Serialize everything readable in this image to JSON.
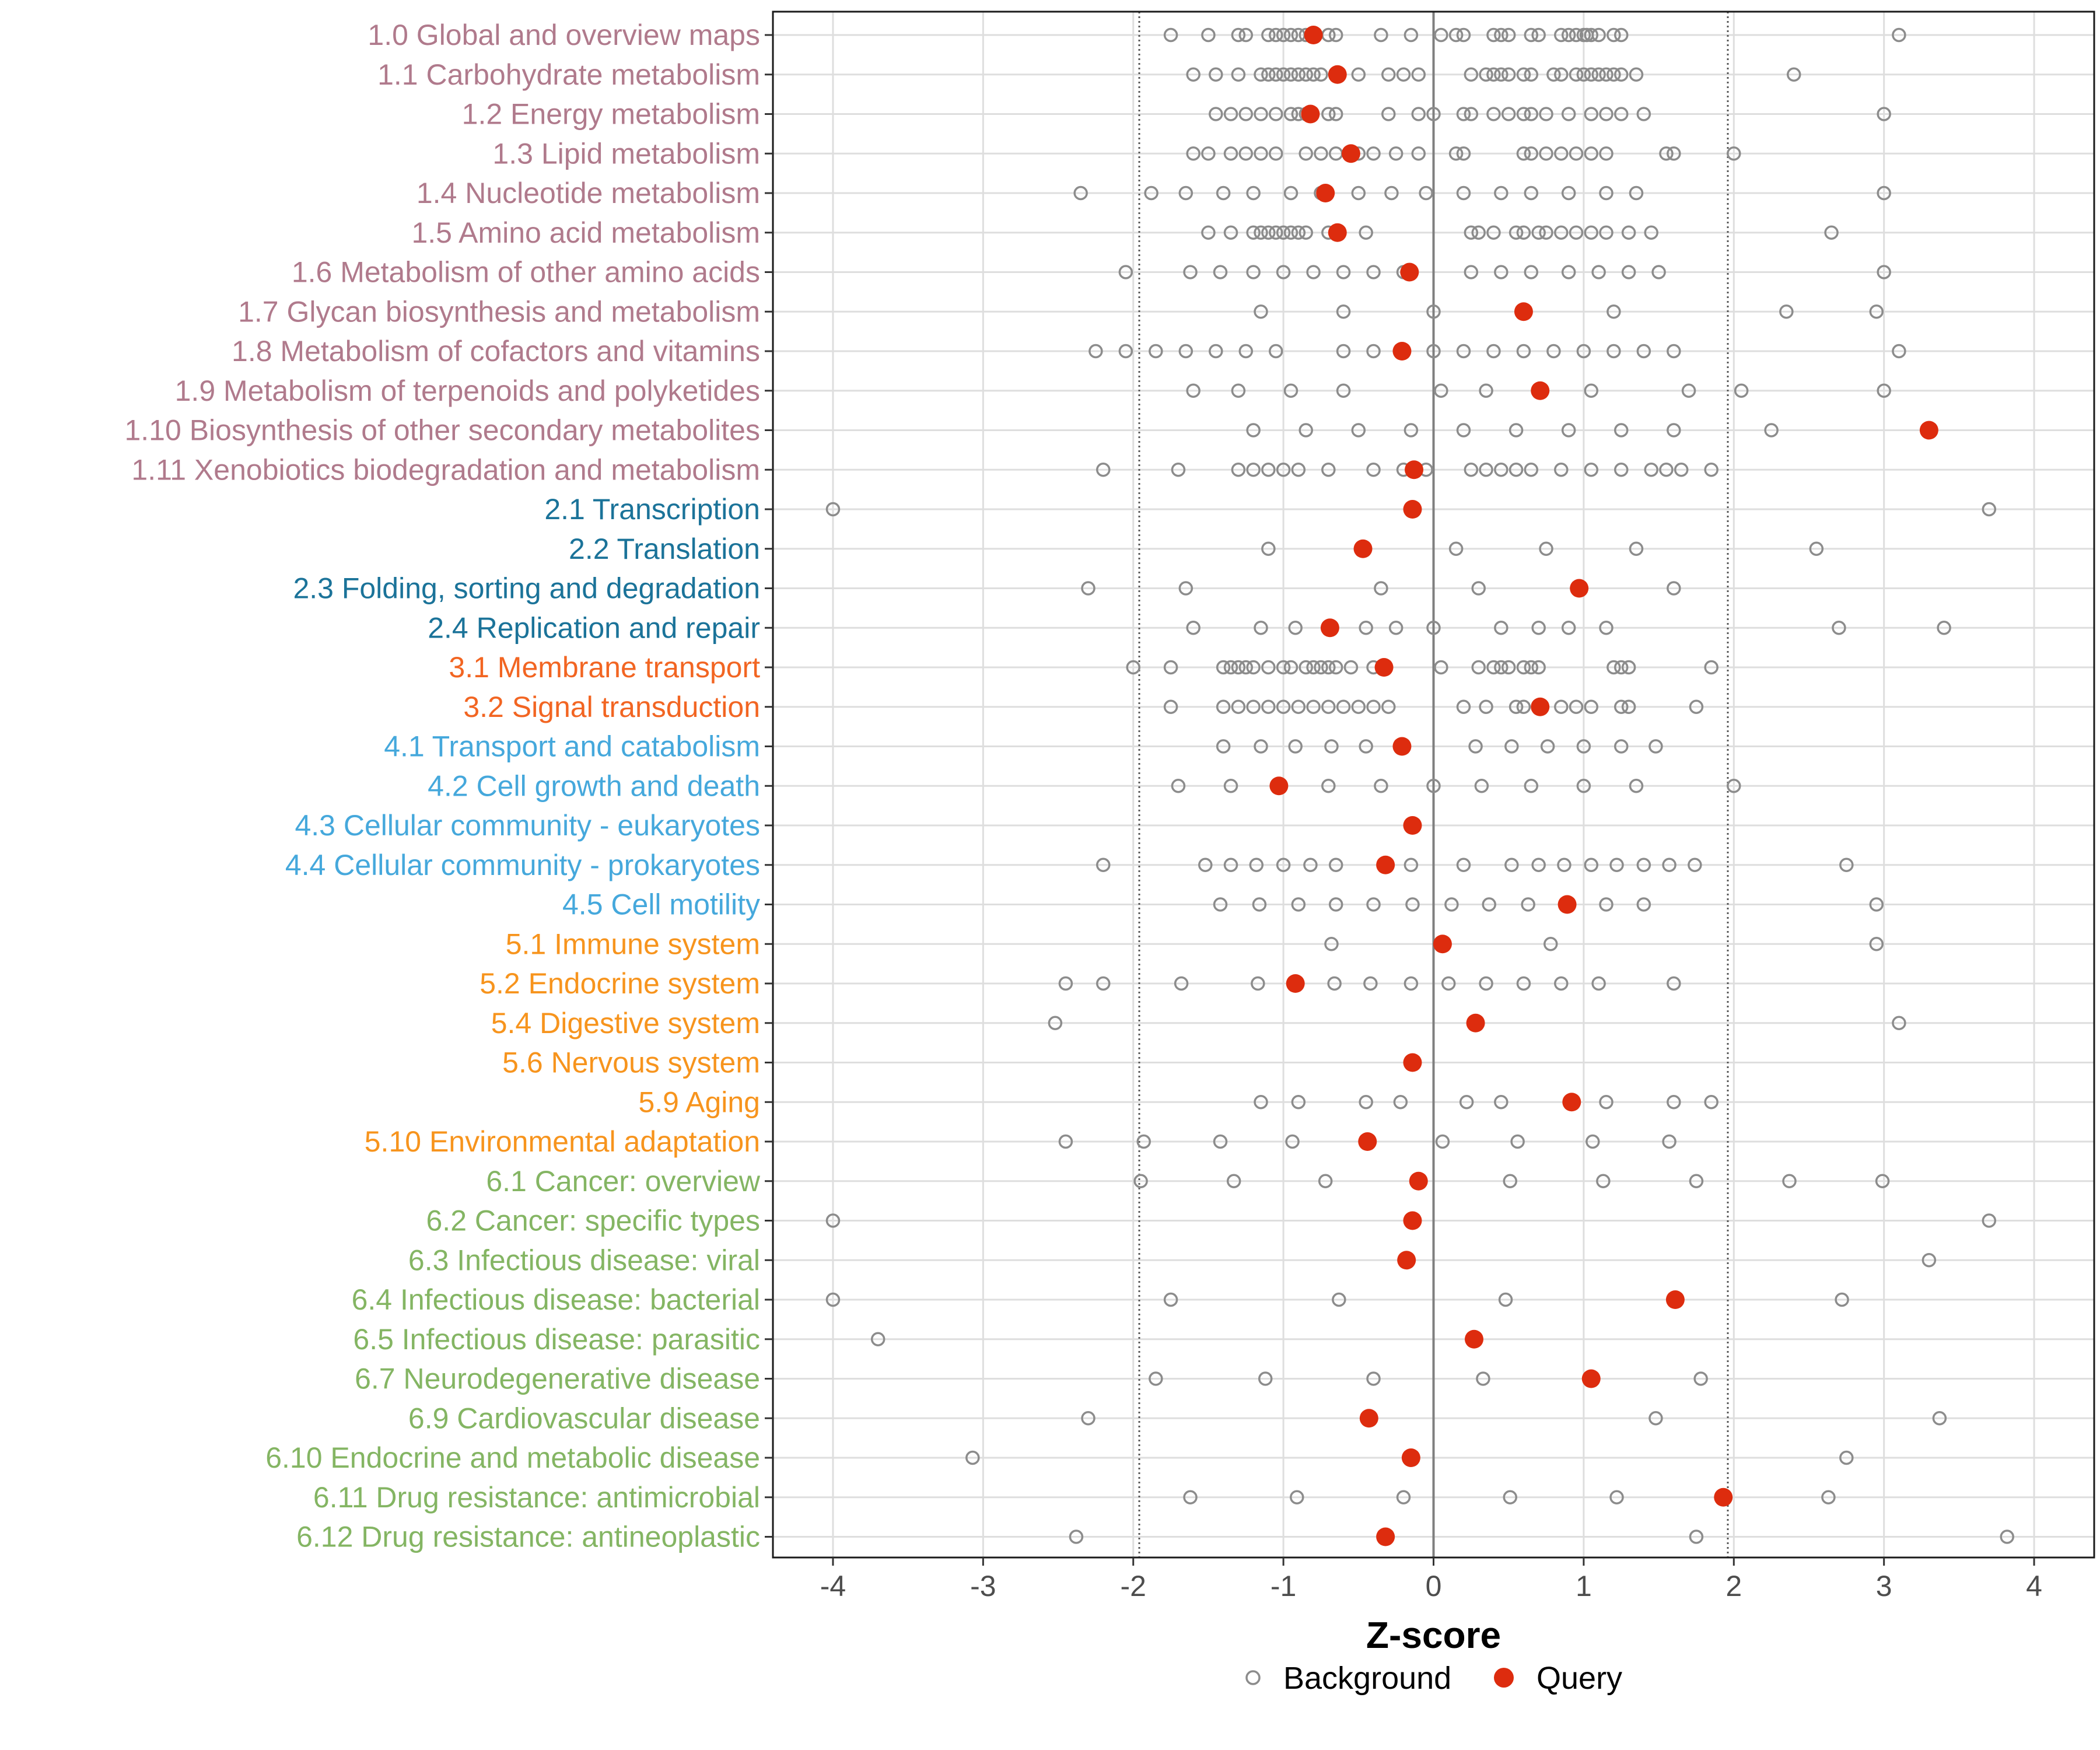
{
  "chart_data": {
    "type": "scatter",
    "xlabel": "Z-score",
    "xlim": [
      -4.4,
      4.4
    ],
    "xticks": [
      -4,
      -3,
      -2,
      -1,
      0,
      1,
      2,
      3,
      4
    ],
    "xtick_labels": [
      "-4",
      "-3",
      "-2",
      "-1",
      "0",
      "1",
      "2",
      "3",
      "4"
    ],
    "reference_lines": [
      -1.96,
      0,
      1.96
    ],
    "legend": {
      "position": "bottom",
      "background_label": "Background",
      "query_label": "Query"
    },
    "colors": {
      "group1": "#B07A8C",
      "group2": "#1B7399",
      "group3": "#F26522",
      "group4": "#45A8DC",
      "group5": "#F7941D",
      "group6": "#84B563",
      "query": "#DD2C0E",
      "background": "#8C8C8C"
    },
    "categories": [
      {
        "label": "1.0 Global and overview maps",
        "group": "group1",
        "query": -0.8,
        "background": [
          -1.75,
          -1.5,
          -1.3,
          -1.25,
          -1.1,
          -1.05,
          -1.0,
          -0.95,
          -0.9,
          -0.85,
          -0.7,
          -0.65,
          -0.35,
          -0.15,
          0.05,
          0.15,
          0.2,
          0.4,
          0.45,
          0.5,
          0.65,
          0.7,
          0.85,
          0.9,
          0.95,
          1.0,
          1.02,
          1.05,
          1.1,
          1.2,
          1.25,
          3.1
        ]
      },
      {
        "label": "1.1 Carbohydrate metabolism",
        "group": "group1",
        "query": -0.64,
        "background": [
          -1.6,
          -1.45,
          -1.3,
          -1.15,
          -1.1,
          -1.05,
          -1.0,
          -0.95,
          -0.9,
          -0.85,
          -0.8,
          -0.75,
          -0.5,
          -0.3,
          -0.2,
          -0.1,
          0.25,
          0.35,
          0.4,
          0.45,
          0.5,
          0.6,
          0.65,
          0.8,
          0.85,
          0.95,
          1.0,
          1.05,
          1.1,
          1.15,
          1.2,
          1.25,
          1.35,
          2.4
        ]
      },
      {
        "label": "1.2 Energy metabolism",
        "group": "group1",
        "query": -0.82,
        "background": [
          -1.45,
          -1.35,
          -1.25,
          -1.15,
          -1.05,
          -0.95,
          -0.9,
          -0.85,
          -0.7,
          -0.65,
          -0.3,
          -0.1,
          0.0,
          0.2,
          0.25,
          0.4,
          0.5,
          0.6,
          0.65,
          0.75,
          0.9,
          1.05,
          1.15,
          1.25,
          1.4,
          3.0
        ]
      },
      {
        "label": "1.3 Lipid metabolism",
        "group": "group1",
        "query": -0.55,
        "background": [
          -1.6,
          -1.5,
          -1.35,
          -1.25,
          -1.15,
          -1.05,
          -0.85,
          -0.75,
          -0.65,
          -0.5,
          -0.4,
          -0.25,
          -0.1,
          0.15,
          0.2,
          0.6,
          0.65,
          0.75,
          0.85,
          0.95,
          1.05,
          1.15,
          1.55,
          1.6,
          2.0
        ]
      },
      {
        "label": "1.4 Nucleotide metabolism",
        "group": "group1",
        "query": -0.72,
        "background": [
          -2.35,
          -1.88,
          -1.65,
          -1.4,
          -1.2,
          -0.95,
          -0.75,
          -0.5,
          -0.28,
          -0.05,
          0.2,
          0.45,
          0.65,
          0.9,
          1.15,
          1.35,
          3.0
        ]
      },
      {
        "label": "1.5 Amino acid metabolism",
        "group": "group1",
        "query": -0.64,
        "background": [
          -1.5,
          -1.35,
          -1.2,
          -1.15,
          -1.1,
          -1.05,
          -1.0,
          -0.95,
          -0.9,
          -0.85,
          -0.7,
          -0.65,
          -0.45,
          0.25,
          0.3,
          0.4,
          0.55,
          0.6,
          0.7,
          0.75,
          0.85,
          0.95,
          1.05,
          1.15,
          1.3,
          1.45,
          2.65
        ]
      },
      {
        "label": "1.6 Metabolism of other amino acids",
        "group": "group1",
        "query": -0.16,
        "background": [
          -2.05,
          -1.62,
          -1.42,
          -1.2,
          -1.0,
          -0.8,
          -0.6,
          -0.4,
          -0.2,
          0.25,
          0.45,
          0.65,
          0.9,
          1.1,
          1.3,
          1.5,
          3.0
        ]
      },
      {
        "label": "1.7 Glycan biosynthesis and metabolism",
        "group": "group1",
        "query": 0.6,
        "background": [
          -1.15,
          -0.6,
          0.0,
          1.2,
          2.35,
          2.95
        ]
      },
      {
        "label": "1.8 Metabolism of cofactors and vitamins",
        "group": "group1",
        "query": -0.21,
        "background": [
          -2.25,
          -2.05,
          -1.85,
          -1.65,
          -1.45,
          -1.25,
          -1.05,
          -0.6,
          -0.4,
          -0.2,
          0.0,
          0.2,
          0.4,
          0.6,
          0.8,
          1.0,
          1.2,
          1.4,
          1.6,
          3.1
        ]
      },
      {
        "label": "1.9 Metabolism of terpenoids and polyketides",
        "group": "group1",
        "query": 0.71,
        "background": [
          -1.6,
          -1.3,
          -0.95,
          -0.6,
          0.05,
          0.35,
          1.05,
          1.7,
          2.05,
          3.0
        ]
      },
      {
        "label": "1.10 Biosynthesis of other secondary metabolites",
        "group": "group1",
        "query": 3.3,
        "background": [
          -1.2,
          -0.85,
          -0.5,
          -0.15,
          0.2,
          0.55,
          0.9,
          1.25,
          1.6,
          2.25
        ]
      },
      {
        "label": "1.11 Xenobiotics biodegradation and metabolism",
        "group": "group1",
        "query": -0.13,
        "background": [
          -2.2,
          -1.7,
          -1.3,
          -1.2,
          -1.1,
          -1.0,
          -0.9,
          -0.7,
          -0.4,
          -0.2,
          -0.05,
          0.25,
          0.35,
          0.45,
          0.55,
          0.65,
          0.85,
          1.05,
          1.25,
          1.45,
          1.55,
          1.65,
          1.85
        ]
      },
      {
        "label": "2.1 Transcription",
        "group": "group2",
        "query": -0.14,
        "background": [
          -4.0,
          3.7
        ]
      },
      {
        "label": "2.2 Translation",
        "group": "group2",
        "query": -0.47,
        "background": [
          -1.1,
          0.15,
          0.75,
          1.35,
          2.55
        ]
      },
      {
        "label": "2.3 Folding, sorting and degradation",
        "group": "group2",
        "query": 0.97,
        "background": [
          -2.3,
          -1.65,
          -0.35,
          0.3,
          1.6
        ]
      },
      {
        "label": "2.4 Replication and repair",
        "group": "group2",
        "query": -0.69,
        "background": [
          -1.6,
          -1.15,
          -0.92,
          -0.45,
          -0.25,
          0.0,
          0.45,
          0.7,
          0.9,
          1.15,
          2.7,
          3.4
        ]
      },
      {
        "label": "3.1 Membrane transport",
        "group": "group3",
        "query": -0.33,
        "background": [
          -2.0,
          -1.75,
          -1.4,
          -1.35,
          -1.3,
          -1.25,
          -1.2,
          -1.1,
          -1.0,
          -0.95,
          -0.85,
          -0.8,
          -0.75,
          -0.7,
          -0.65,
          -0.55,
          -0.4,
          0.05,
          0.3,
          0.4,
          0.45,
          0.5,
          0.6,
          0.65,
          0.7,
          1.2,
          1.25,
          1.3,
          1.85
        ]
      },
      {
        "label": "3.2 Signal transduction",
        "group": "group3",
        "query": 0.71,
        "background": [
          -1.75,
          -1.4,
          -1.3,
          -1.2,
          -1.1,
          -1.0,
          -0.9,
          -0.8,
          -0.7,
          -0.6,
          -0.5,
          -0.4,
          -0.3,
          0.2,
          0.35,
          0.55,
          0.6,
          0.85,
          0.95,
          1.05,
          1.25,
          1.3,
          1.75
        ]
      },
      {
        "label": "4.1 Transport and catabolism",
        "group": "group4",
        "query": -0.21,
        "background": [
          -1.4,
          -1.15,
          -0.92,
          -0.68,
          -0.45,
          0.28,
          0.52,
          0.76,
          1.0,
          1.25,
          1.48
        ]
      },
      {
        "label": "4.2 Cell growth and death",
        "group": "group4",
        "query": -1.03,
        "background": [
          -1.7,
          -1.35,
          -0.7,
          -0.35,
          0.0,
          0.32,
          0.65,
          1.0,
          1.35,
          2.0
        ]
      },
      {
        "label": "4.3 Cellular community - eukaryotes",
        "group": "group4",
        "query": -0.14,
        "background": []
      },
      {
        "label": "4.4 Cellular community - prokaryotes",
        "group": "group4",
        "query": -0.32,
        "background": [
          -2.2,
          -1.52,
          -1.35,
          -1.18,
          -1.0,
          -0.82,
          -0.65,
          -0.15,
          0.2,
          0.52,
          0.7,
          0.87,
          1.05,
          1.22,
          1.4,
          1.57,
          1.74,
          2.75
        ]
      },
      {
        "label": "4.5 Cell motility",
        "group": "group4",
        "query": 0.89,
        "background": [
          -1.42,
          -1.16,
          -0.9,
          -0.65,
          -0.4,
          -0.14,
          0.12,
          0.37,
          0.63,
          1.15,
          1.4,
          2.95
        ]
      },
      {
        "label": "5.1 Immune system",
        "group": "group5",
        "query": 0.06,
        "background": [
          -0.68,
          0.78,
          2.95
        ]
      },
      {
        "label": "5.2 Endocrine system",
        "group": "group5",
        "query": -0.92,
        "background": [
          -2.45,
          -2.2,
          -1.68,
          -1.17,
          -0.66,
          -0.42,
          -0.15,
          0.1,
          0.35,
          0.6,
          0.85,
          1.1,
          1.6
        ]
      },
      {
        "label": "5.4 Digestive system",
        "group": "group5",
        "query": 0.28,
        "background": [
          -2.52,
          3.1
        ]
      },
      {
        "label": "5.6 Nervous system",
        "group": "group5",
        "query": -0.14,
        "background": []
      },
      {
        "label": "5.9 Aging",
        "group": "group5",
        "query": 0.92,
        "background": [
          -1.15,
          -0.9,
          -0.45,
          -0.22,
          0.22,
          0.45,
          1.15,
          1.6,
          1.85
        ]
      },
      {
        "label": "5.10 Environmental adaptation",
        "group": "group5",
        "query": -0.44,
        "background": [
          -2.45,
          -1.93,
          -1.42,
          -0.94,
          0.06,
          0.56,
          1.06,
          1.57
        ]
      },
      {
        "label": "6.1 Cancer: overview",
        "group": "group6",
        "query": -0.1,
        "background": [
          -1.95,
          -1.33,
          -0.72,
          0.51,
          1.13,
          1.75,
          2.37,
          2.99
        ]
      },
      {
        "label": "6.2 Cancer: specific types",
        "group": "group6",
        "query": -0.14,
        "background": [
          -4.0,
          3.7
        ]
      },
      {
        "label": "6.3 Infectious disease: viral",
        "group": "group6",
        "query": -0.18,
        "background": [
          3.3
        ]
      },
      {
        "label": "6.4 Infectious disease: bacterial",
        "group": "group6",
        "query": 1.61,
        "background": [
          -4.0,
          -1.75,
          -0.63,
          0.48,
          2.72
        ]
      },
      {
        "label": "6.5 Infectious disease: parasitic",
        "group": "group6",
        "query": 0.27,
        "background": [
          -3.7
        ]
      },
      {
        "label": "6.7 Neurodegenerative disease",
        "group": "group6",
        "query": 1.05,
        "background": [
          -1.85,
          -1.12,
          -0.4,
          0.33,
          1.78
        ]
      },
      {
        "label": "6.9 Cardiovascular disease",
        "group": "group6",
        "query": -0.43,
        "background": [
          -2.3,
          1.48,
          3.37
        ]
      },
      {
        "label": "6.10 Endocrine and metabolic disease",
        "group": "group6",
        "query": -0.15,
        "background": [
          -3.07,
          2.75
        ]
      },
      {
        "label": "6.11 Drug resistance: antimicrobial",
        "group": "group6",
        "query": 1.93,
        "background": [
          -1.62,
          -0.91,
          -0.2,
          0.51,
          1.22,
          2.63
        ]
      },
      {
        "label": "6.12 Drug resistance: antineoplastic",
        "group": "group6",
        "query": -0.32,
        "background": [
          -2.38,
          1.75,
          3.82
        ]
      }
    ]
  }
}
